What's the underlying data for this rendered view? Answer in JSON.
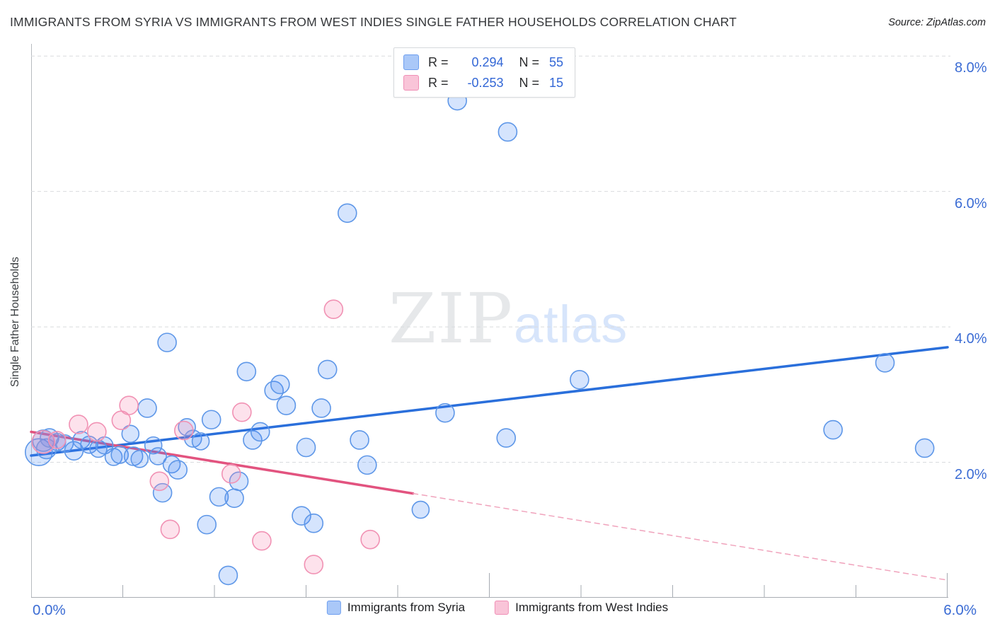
{
  "title": "IMMIGRANTS FROM SYRIA VS IMMIGRANTS FROM WEST INDIES SINGLE FATHER HOUSEHOLDS CORRELATION CHART",
  "source": "Source: ZipAtlas.com",
  "watermark": {
    "zip": "ZIP",
    "atlas": "atlas"
  },
  "stats_legend": {
    "rows": [
      {
        "r_label": "R =",
        "r_value": "0.294",
        "n_label": "N =",
        "n_value": "55",
        "swatch_fill": "#aac8f8",
        "swatch_border": "#6d9eef"
      },
      {
        "r_label": "R =",
        "r_value": "-0.253",
        "n_label": "N =",
        "n_value": "15",
        "swatch_fill": "#f9c4d8",
        "swatch_border": "#f08fb6"
      }
    ]
  },
  "bottom_legend": [
    {
      "label": "Immigrants from Syria",
      "swatch_fill": "#aac8f8",
      "swatch_border": "#6d9eef"
    },
    {
      "label": "Immigrants from West Indies",
      "swatch_fill": "#f9c4d8",
      "swatch_border": "#f08fb6"
    }
  ],
  "chart_data": {
    "type": "scatter",
    "title": "Immigrants from Syria vs Immigrants from West Indies Single Father Households",
    "xlabel_left": "0.0%",
    "xlabel_right": "6.0%",
    "ylabel": "Single Father Households",
    "x_range": [
      0,
      6
    ],
    "y_range": [
      0,
      8.18
    ],
    "grid": "horizontal-dashed",
    "y_gridlines": [
      2,
      4,
      6,
      8
    ],
    "y_tick_labels": [
      "2.0%",
      "4.0%",
      "6.0%",
      "8.0%"
    ],
    "x_minor_ticks": [
      0.6,
      1.2,
      1.8,
      2.4,
      3.6,
      4.2,
      4.8,
      5.4
    ],
    "x_major_ticks": [
      3.0,
      6.0
    ],
    "series": [
      {
        "name": "Immigrants from Syria",
        "R": 0.294,
        "N": 55,
        "point_fill": "rgba(66,133,244,0.22)",
        "point_stroke": "#5e97e8",
        "points": [
          [
            0.05,
            2.15,
            19
          ],
          [
            0.08,
            2.32,
            15
          ],
          [
            0.1,
            2.2,
            14
          ],
          [
            0.12,
            2.36,
            13
          ],
          [
            0.17,
            2.3,
            12
          ],
          [
            0.22,
            2.28,
            12
          ],
          [
            0.28,
            2.17,
            13
          ],
          [
            0.33,
            2.33,
            12
          ],
          [
            0.38,
            2.26,
            12
          ],
          [
            0.44,
            2.2,
            12
          ],
          [
            0.48,
            2.25,
            12
          ],
          [
            0.54,
            2.08,
            12
          ],
          [
            0.58,
            2.11,
            12
          ],
          [
            0.65,
            2.42,
            12
          ],
          [
            0.67,
            2.09,
            13
          ],
          [
            0.71,
            2.05,
            12
          ],
          [
            0.76,
            2.8,
            13
          ],
          [
            0.8,
            2.25,
            12
          ],
          [
            0.83,
            2.09,
            12
          ],
          [
            0.86,
            1.55,
            13
          ],
          [
            0.89,
            3.77,
            13
          ],
          [
            0.92,
            1.97,
            12
          ],
          [
            0.96,
            1.89,
            13
          ],
          [
            1.02,
            2.52,
            12
          ],
          [
            1.06,
            2.35,
            12
          ],
          [
            1.11,
            2.31,
            12
          ],
          [
            1.15,
            1.08,
            13
          ],
          [
            1.18,
            2.63,
            13
          ],
          [
            1.23,
            1.49,
            13
          ],
          [
            1.29,
            0.33,
            13
          ],
          [
            1.33,
            1.47,
            13
          ],
          [
            1.36,
            1.72,
            13
          ],
          [
            1.41,
            3.34,
            13
          ],
          [
            1.45,
            2.33,
            13
          ],
          [
            1.5,
            2.45,
            13
          ],
          [
            1.59,
            3.06,
            13
          ],
          [
            1.63,
            3.15,
            13
          ],
          [
            1.67,
            2.84,
            13
          ],
          [
            1.77,
            1.21,
            13
          ],
          [
            1.8,
            2.22,
            13
          ],
          [
            1.85,
            1.1,
            13
          ],
          [
            1.9,
            2.8,
            13
          ],
          [
            1.94,
            3.37,
            13
          ],
          [
            2.07,
            5.68,
            13
          ],
          [
            2.15,
            2.33,
            13
          ],
          [
            2.2,
            1.96,
            13
          ],
          [
            2.55,
            1.3,
            12
          ],
          [
            2.71,
            2.73,
            13
          ],
          [
            2.79,
            7.34,
            13
          ],
          [
            3.11,
            2.36,
            13
          ],
          [
            3.12,
            6.88,
            13
          ],
          [
            3.59,
            3.22,
            13
          ],
          [
            5.25,
            2.48,
            13
          ],
          [
            5.59,
            3.47,
            13
          ],
          [
            5.85,
            2.21,
            13
          ]
        ]
      },
      {
        "name": "Immigrants from West Indies",
        "R": -0.253,
        "N": 15,
        "point_fill": "rgba(246,140,180,0.25)",
        "point_stroke": "#f192b4",
        "points": [
          [
            0.08,
            2.3,
            16
          ],
          [
            0.17,
            2.33,
            12
          ],
          [
            0.31,
            2.56,
            13
          ],
          [
            0.43,
            2.45,
            13
          ],
          [
            0.59,
            2.62,
            13
          ],
          [
            0.64,
            2.84,
            13
          ],
          [
            0.84,
            1.72,
            13
          ],
          [
            0.91,
            1.01,
            13
          ],
          [
            1.0,
            2.47,
            13
          ],
          [
            1.31,
            1.83,
            13
          ],
          [
            1.38,
            2.74,
            13
          ],
          [
            1.51,
            0.84,
            13
          ],
          [
            1.85,
            0.49,
            13
          ],
          [
            1.98,
            4.26,
            13
          ],
          [
            2.22,
            0.86,
            13
          ]
        ]
      }
    ],
    "trend_lines": [
      {
        "series": "Immigrants from Syria",
        "style": "solid",
        "color": "#2a6fdb",
        "width": 3.5,
        "from": [
          0,
          2.1
        ],
        "to": [
          6,
          3.7
        ]
      },
      {
        "series": "Immigrants from West Indies",
        "style": "solid",
        "color": "#e2537f",
        "width": 3.5,
        "from": [
          0,
          2.45
        ],
        "to": [
          2.5,
          1.54
        ]
      },
      {
        "series": "Immigrants from West Indies",
        "style": "dashed",
        "color": "#f0a3bc",
        "width": 1.5,
        "from": [
          2.5,
          1.54
        ],
        "to": [
          6,
          0.26
        ]
      }
    ],
    "legend_position": "bottom-center"
  }
}
